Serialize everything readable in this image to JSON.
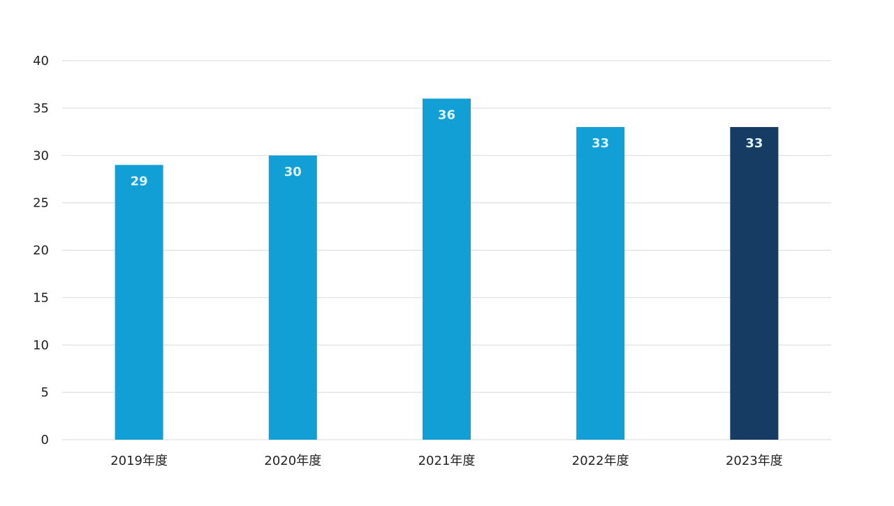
{
  "chart_data": {
    "type": "bar",
    "categories": [
      "2019年度",
      "2020年度",
      "2021年度",
      "2022年度",
      "2023年度"
    ],
    "values": [
      29,
      30,
      36,
      33,
      33
    ],
    "ylim": [
      0,
      40
    ],
    "yticks": [
      0,
      5,
      10,
      15,
      20,
      25,
      30,
      35,
      40
    ],
    "grid": true,
    "data_labels": true,
    "legend": "none",
    "colors": {
      "bar": "#119fd6",
      "highlight_bar": "#173c63",
      "grid": "#d9d9d9",
      "text": "#222222",
      "bar_label": "#dff3fb"
    },
    "highlight_index": 4
  }
}
